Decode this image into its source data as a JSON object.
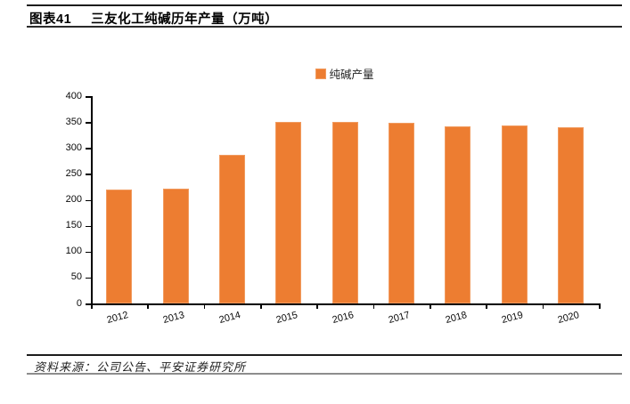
{
  "header": {
    "tag": "图表41",
    "title": "三友化工纯碱历年产量（万吨）"
  },
  "legend": {
    "label": "纯碱产量"
  },
  "chart_data": {
    "type": "bar",
    "title": "",
    "xlabel": "",
    "ylabel": "",
    "categories": [
      "2012",
      "2013",
      "2014",
      "2015",
      "2016",
      "2017",
      "2018",
      "2019",
      "2020"
    ],
    "series": [
      {
        "name": "纯碱产量",
        "values": [
          219,
          221,
          287,
          350,
          350,
          348,
          341,
          343,
          340
        ]
      }
    ],
    "ylim": [
      0,
      400
    ],
    "ytick_step": 50,
    "ytick_labels": [
      "0",
      "50",
      "100",
      "150",
      "200",
      "250",
      "300",
      "350",
      "400"
    ],
    "grid": false,
    "legend_position": "top-center",
    "bar_color": "#ED7D31",
    "bar_border_color": "#F19B5F",
    "axis_color": "#000000"
  },
  "footer": {
    "source": "资料来源：公司公告、平安证券研究所"
  }
}
